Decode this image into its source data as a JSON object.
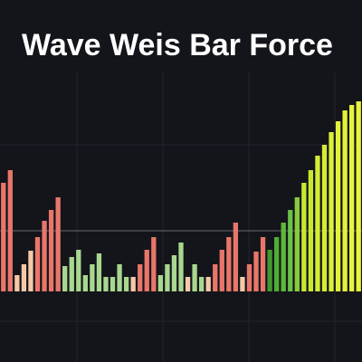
{
  "chart_data": {
    "type": "bar",
    "title": "Wave Weis Bar Force",
    "values": [
      120,
      134,
      18,
      30,
      45,
      60,
      78,
      90,
      104,
      28,
      38,
      46,
      18,
      30,
      42,
      16,
      16,
      30,
      16,
      16,
      30,
      46,
      60,
      18,
      30,
      40,
      54,
      16,
      30,
      16,
      16,
      30,
      46,
      60,
      76,
      16,
      30,
      44,
      60,
      46,
      60,
      76,
      90,
      104,
      120,
      134,
      150,
      162,
      176,
      188,
      200,
      206,
      210
    ],
    "colors": [
      "#e8766a",
      "#e8766a",
      "#f5c9a8",
      "#f5c9a8",
      "#f5c9a8",
      "#e8766a",
      "#e8766a",
      "#e8766a",
      "#e8766a",
      "#a8d890",
      "#a8d890",
      "#a8d890",
      "#a8d890",
      "#a8d890",
      "#a8d890",
      "#a8d890",
      "#a8d890",
      "#a8d890",
      "#a8d890",
      "#f5c9a8",
      "#e8766a",
      "#e8766a",
      "#e8766a",
      "#a8d890",
      "#a8d890",
      "#a8d890",
      "#a8d890",
      "#f5c9a8",
      "#a8d890",
      "#a8d890",
      "#f5c9a8",
      "#e8766a",
      "#e8766a",
      "#e8766a",
      "#e8766a",
      "#f5c9a8",
      "#e8766a",
      "#e8766a",
      "#e8766a",
      "#3f9a2e",
      "#4fae34",
      "#5cb83a",
      "#6cc04a",
      "#86cc3e",
      "#c8e830",
      "#c8e830",
      "#d4ec34",
      "#d4ec34",
      "#dcf038",
      "#e4f23a",
      "#e4f23a",
      "#e8f43c",
      "#e8f43c"
    ],
    "ylim": [
      0,
      210
    ]
  }
}
